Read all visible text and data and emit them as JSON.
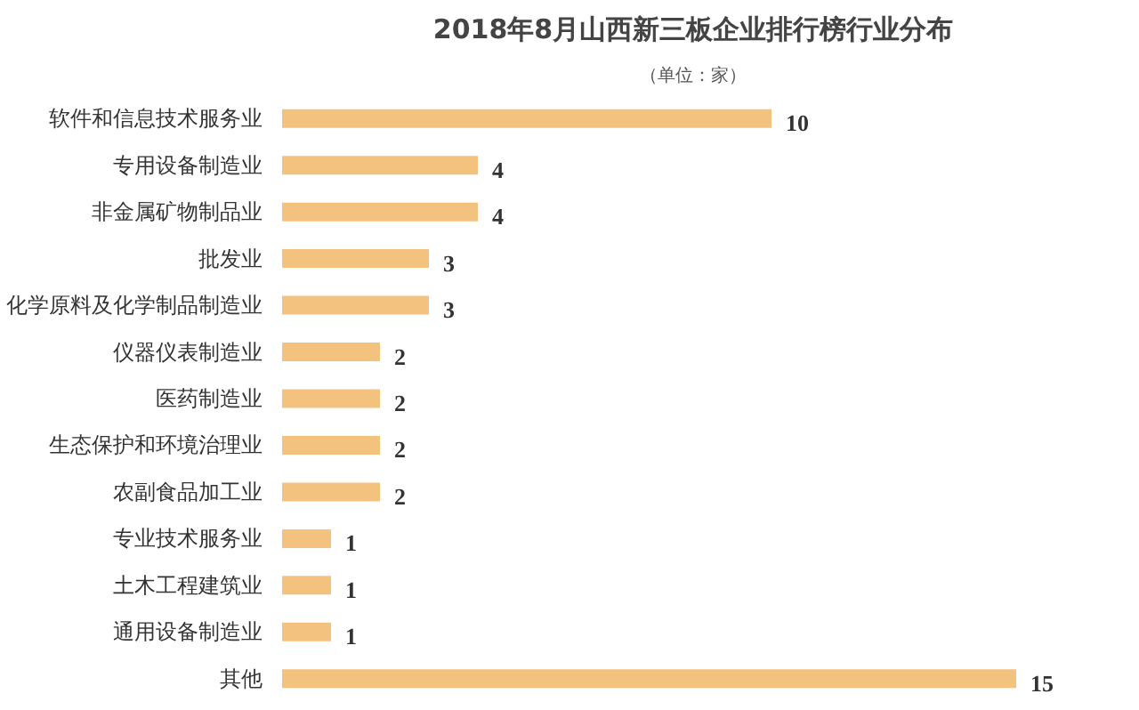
{
  "chart_data": {
    "type": "bar",
    "orientation": "horizontal",
    "title": "2018年8月山西新三板企业排行榜行业分布",
    "subtitle": "（单位：家）",
    "categories": [
      "软件和信息技术服务业",
      "专用设备制造业",
      "非金属矿物制品业",
      "批发业",
      "化学原料及化学制品制造业",
      "仪器仪表制造业",
      "医药制造业",
      "生态保护和环境治理业",
      "农副食品加工业",
      "专业技术服务业",
      "土木工程建筑业",
      "通用设备制造业",
      "其他"
    ],
    "values": [
      10,
      4,
      4,
      3,
      3,
      2,
      2,
      2,
      2,
      1,
      1,
      1,
      15
    ],
    "color": "#f4c27f",
    "data_labels": true,
    "tick_labels": "y"
  }
}
